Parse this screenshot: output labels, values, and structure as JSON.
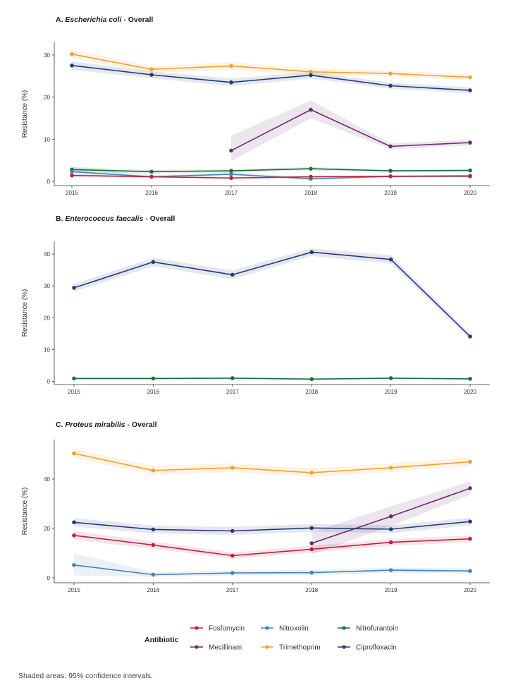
{
  "chart_data": [
    {
      "type": "line",
      "title_prefix": "A. ",
      "title_italic": "Escherichia coli",
      "title_suffix": " - Overall",
      "xlabel": "",
      "ylabel": "Resistance (%)",
      "x": [
        2015,
        2016,
        2017,
        2018,
        2019,
        2020
      ],
      "ylim": [
        -1,
        33
      ],
      "yticks": [
        0,
        10,
        20,
        30
      ],
      "series": [
        {
          "name": "Trimethoprim",
          "color": "#f5a02a",
          "x": [
            2015,
            2016,
            2017,
            2018,
            2019,
            2020
          ],
          "values": [
            30.2,
            26.6,
            27.4,
            26.0,
            25.6,
            24.7
          ],
          "lower": [
            29.2,
            25.8,
            26.5,
            25.2,
            24.9,
            24.0
          ],
          "upper": [
            31.2,
            27.4,
            28.3,
            26.8,
            26.3,
            25.4
          ]
        },
        {
          "name": "Ciprofloxacin",
          "color": "#263a7a",
          "x": [
            2015,
            2016,
            2017,
            2018,
            2019,
            2020
          ],
          "values": [
            27.5,
            25.3,
            23.5,
            25.2,
            22.7,
            21.6
          ],
          "lower": [
            26.5,
            24.5,
            22.6,
            24.4,
            22.0,
            20.9
          ],
          "upper": [
            28.5,
            26.1,
            24.4,
            26.0,
            23.4,
            22.3
          ]
        },
        {
          "name": "Mecillinam",
          "color": "#6b2c6e",
          "x": [
            2017,
            2018,
            2019,
            2020
          ],
          "values": [
            7.3,
            17.0,
            8.3,
            9.2
          ],
          "lower": [
            4.8,
            15.0,
            7.6,
            8.5
          ],
          "upper": [
            10.8,
            19.2,
            9.0,
            9.9
          ]
        },
        {
          "name": "Nitrofurantoin",
          "color": "#1a6e3b",
          "x": [
            2015,
            2016,
            2017,
            2018,
            2019,
            2020
          ],
          "values": [
            2.8,
            2.3,
            2.5,
            3.0,
            2.5,
            2.6
          ],
          "lower": [
            2.2,
            1.9,
            2.1,
            2.6,
            2.2,
            2.3
          ],
          "upper": [
            3.4,
            2.7,
            2.9,
            3.4,
            2.8,
            2.9
          ]
        },
        {
          "name": "Nitroxolin",
          "color": "#4682b4",
          "x": [
            2015,
            2016,
            2017,
            2018,
            2019,
            2020
          ],
          "values": [
            2.3,
            1.1,
            1.7,
            0.6,
            1.2,
            1.2
          ],
          "lower": [
            1.4,
            0.7,
            1.2,
            0.3,
            0.9,
            0.9
          ],
          "upper": [
            3.4,
            1.5,
            2.2,
            0.9,
            1.5,
            1.5
          ]
        },
        {
          "name": "Fosfomycin",
          "color": "#c0203b",
          "x": [
            2015,
            2016,
            2017,
            2018,
            2019,
            2020
          ],
          "values": [
            1.4,
            1.1,
            0.8,
            1.1,
            1.2,
            1.3
          ],
          "lower": [
            1.1,
            0.9,
            0.6,
            0.9,
            1.0,
            1.1
          ],
          "upper": [
            1.7,
            1.3,
            1.0,
            1.3,
            1.4,
            1.5
          ]
        }
      ]
    },
    {
      "type": "line",
      "title_prefix": "B. ",
      "title_italic": "Enterococcus faecalis",
      "title_suffix": " - Overall",
      "xlabel": "",
      "ylabel": "Resistance (%)",
      "x": [
        2015,
        2016,
        2017,
        2018,
        2019,
        2020
      ],
      "ylim": [
        -1,
        44
      ],
      "yticks": [
        0,
        10,
        20,
        30,
        40
      ],
      "series": [
        {
          "name": "Ciprofloxacin",
          "color": "#263a7a",
          "x": [
            2015,
            2016,
            2017,
            2018,
            2019,
            2020
          ],
          "values": [
            29.4,
            37.5,
            33.5,
            40.6,
            38.3,
            14.1
          ],
          "lower": [
            28.2,
            36.2,
            32.1,
            39.4,
            37.0,
            13.3
          ],
          "upper": [
            30.6,
            38.8,
            34.9,
            41.8,
            39.6,
            14.9
          ]
        },
        {
          "name": "Nitrofurantoin",
          "color": "#1a6e3b",
          "x": [
            2015,
            2016,
            2017,
            2018,
            2019,
            2020
          ],
          "values": [
            0.9,
            0.9,
            1.0,
            0.7,
            1.0,
            0.8
          ],
          "lower": [
            0.6,
            0.6,
            0.7,
            0.5,
            0.7,
            0.6
          ],
          "upper": [
            1.2,
            1.2,
            1.3,
            0.9,
            1.3,
            1.0
          ]
        }
      ]
    },
    {
      "type": "line",
      "title_prefix": "C. ",
      "title_italic": "Proteus mirabilis",
      "title_suffix": " - Overall",
      "xlabel": "",
      "ylabel": "Resistance (%)",
      "x": [
        2015,
        2016,
        2017,
        2018,
        2019,
        2020
      ],
      "ylim": [
        -2,
        56
      ],
      "yticks": [
        0,
        20,
        40
      ],
      "series": [
        {
          "name": "Trimethoprim",
          "color": "#f5a02a",
          "x": [
            2015,
            2016,
            2017,
            2018,
            2019,
            2020
          ],
          "values": [
            50.4,
            43.5,
            44.6,
            42.6,
            44.6,
            47.0
          ],
          "lower": [
            48.6,
            41.6,
            42.8,
            40.8,
            42.8,
            45.2
          ],
          "upper": [
            52.2,
            45.4,
            46.4,
            44.4,
            46.4,
            48.8
          ]
        },
        {
          "name": "Mecillinam",
          "color": "#6b2c6e",
          "x": [
            2018,
            2019,
            2020
          ],
          "values": [
            14.0,
            24.9,
            36.3
          ],
          "lower": [
            9.5,
            21.0,
            33.6
          ],
          "upper": [
            18.5,
            29.0,
            39.0
          ]
        },
        {
          "name": "Ciprofloxacin",
          "color": "#263a7a",
          "x": [
            2015,
            2016,
            2017,
            2018,
            2019,
            2020
          ],
          "values": [
            22.5,
            19.6,
            19.0,
            20.2,
            19.7,
            22.8
          ],
          "lower": [
            20.8,
            18.0,
            17.4,
            18.6,
            18.1,
            21.2
          ],
          "upper": [
            24.2,
            21.2,
            20.6,
            21.8,
            21.3,
            24.4
          ]
        },
        {
          "name": "Fosfomycin",
          "color": "#c0203b",
          "x": [
            2015,
            2016,
            2017,
            2018,
            2019,
            2020
          ],
          "values": [
            17.2,
            13.3,
            9.0,
            11.6,
            14.4,
            15.8
          ],
          "lower": [
            15.4,
            11.8,
            7.7,
            10.2,
            13.0,
            14.4
          ],
          "upper": [
            19.0,
            14.8,
            10.3,
            13.0,
            15.8,
            17.2
          ]
        },
        {
          "name": "Nitroxolin",
          "color": "#4682b4",
          "x": [
            2015,
            2016,
            2017,
            2018,
            2019,
            2020
          ],
          "values": [
            5.2,
            1.3,
            2.0,
            2.1,
            3.1,
            2.8
          ],
          "lower": [
            1.0,
            0.4,
            1.0,
            1.1,
            2.0,
            1.8
          ],
          "upper": [
            10.0,
            2.2,
            3.0,
            3.1,
            4.2,
            3.8
          ]
        }
      ]
    }
  ],
  "legend": {
    "title": "Antibiotic",
    "placement": "bottom-center",
    "rows": [
      [
        {
          "name": "Fosfomycin",
          "color": "#c0203b"
        },
        {
          "name": "Nitroxolin",
          "color": "#4682b4"
        },
        {
          "name": "Nitrofurantoin",
          "color": "#1a6e3b"
        }
      ],
      [
        {
          "name": "Mecillinam",
          "color": "#6b2c6e"
        },
        {
          "name": "Trimethoprim",
          "color": "#f5a02a"
        },
        {
          "name": "Ciprofloxacin",
          "color": "#263a7a"
        }
      ]
    ]
  },
  "footnote": "Shaded areas: 95% confidence intervals."
}
